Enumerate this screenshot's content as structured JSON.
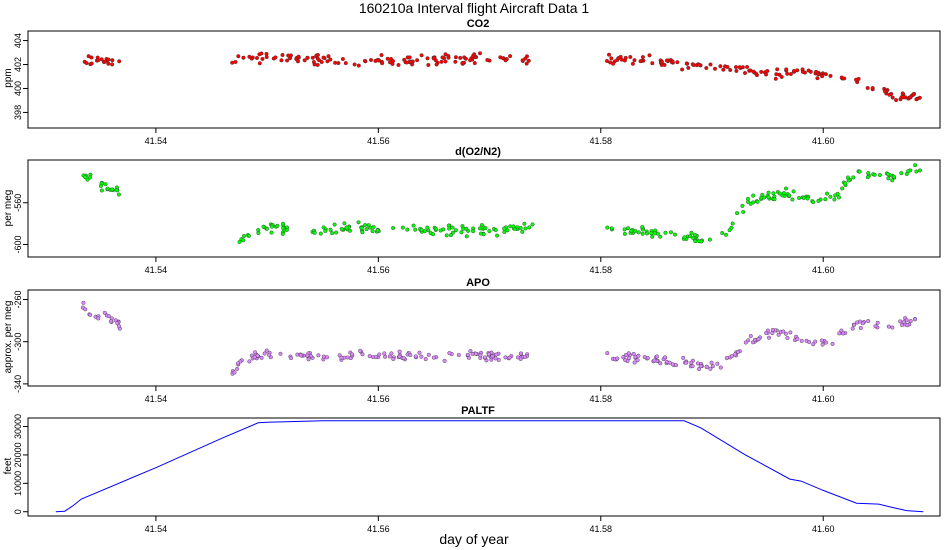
{
  "figure": {
    "title": "160210a   Interval flight Aircraft Data 1",
    "xlabel": "day of year"
  },
  "chart_data": [
    {
      "type": "scatter",
      "title": "CO2",
      "ylabel": "ppm",
      "xlim": [
        41.5285,
        41.6105
      ],
      "ylim": [
        396.7,
        404.8
      ],
      "yticks": [
        398,
        400,
        402,
        404
      ],
      "xticks": [
        41.54,
        41.56,
        41.58,
        41.6
      ],
      "xtick_labels": [
        "41.54",
        "41.56",
        "41.58",
        "41.60"
      ],
      "color": "#ff0000",
      "segments": [
        {
          "x": [
            41.5332,
            41.534,
            41.535,
            41.536,
            41.5368
          ],
          "y": [
            402.1,
            402.3,
            402.4,
            402.2,
            402.3
          ]
        },
        {
          "x": [
            41.5467,
            41.55,
            41.554,
            41.558,
            41.562,
            41.566,
            41.57,
            41.574
          ],
          "y": [
            402.4,
            402.6,
            402.4,
            402.3,
            402.3,
            402.4,
            402.6,
            402.3
          ]
        },
        {
          "x": [
            41.5805,
            41.584,
            41.588,
            41.592,
            41.596,
            41.6,
            41.603,
            41.605,
            41.607,
            41.609
          ],
          "y": [
            402.5,
            402.4,
            402.0,
            401.6,
            401.3,
            401.2,
            400.6,
            399.8,
            399.4,
            399.0
          ]
        }
      ]
    },
    {
      "type": "scatter",
      "title": "d(O2/N2)",
      "ylabel": "per meg",
      "xlim": [
        41.5285,
        41.6105
      ],
      "ylim": [
        -612,
        -519
      ],
      "yticks": [
        -600,
        -560
      ],
      "xticks": [
        41.54,
        41.56,
        41.58,
        41.6
      ],
      "xtick_labels": [
        "41.54",
        "41.56",
        "41.58",
        "41.60"
      ],
      "color": "#00ff00",
      "segments": [
        {
          "x": [
            41.5332,
            41.534,
            41.535,
            41.536,
            41.5368
          ],
          "y": [
            -530,
            -538,
            -542,
            -544,
            -550
          ]
        },
        {
          "x": [
            41.5467,
            41.548,
            41.55,
            41.554,
            41.558,
            41.562,
            41.566,
            41.57,
            41.574
          ],
          "y": [
            -604,
            -592,
            -583,
            -588,
            -583,
            -584,
            -586,
            -587,
            -584
          ]
        },
        {
          "x": [
            41.5805,
            41.584,
            41.588,
            41.591,
            41.593,
            41.596,
            41.599,
            41.601,
            41.603,
            41.606,
            41.609
          ],
          "y": [
            -585,
            -588,
            -594,
            -594,
            -562,
            -550,
            -558,
            -555,
            -531,
            -534,
            -526
          ]
        }
      ]
    },
    {
      "type": "scatter",
      "title": "APO",
      "ylabel": "approx. per meg",
      "xlim": [
        41.5285,
        41.6105
      ],
      "ylim": [
        -342,
        -251
      ],
      "yticks": [
        -340,
        -300,
        -260
      ],
      "xticks": [
        41.54,
        41.56,
        41.58,
        41.6
      ],
      "xtick_labels": [
        "41.54",
        "41.56",
        "41.58",
        "41.60"
      ],
      "color": "#dd88ff",
      "segments": [
        {
          "x": [
            41.5332,
            41.534,
            41.535,
            41.536,
            41.5368
          ],
          "y": [
            -262,
            -272,
            -276,
            -278,
            -286
          ]
        },
        {
          "x": [
            41.5467,
            41.548,
            41.55,
            41.554,
            41.558,
            41.562,
            41.566,
            41.57,
            41.574
          ],
          "y": [
            -332,
            -318,
            -312,
            -316,
            -313,
            -314,
            -314,
            -314,
            -313
          ]
        },
        {
          "x": [
            41.5805,
            41.584,
            41.588,
            41.591,
            41.593,
            41.596,
            41.599,
            41.601,
            41.603,
            41.606,
            41.609
          ],
          "y": [
            -314,
            -316,
            -321,
            -324,
            -300,
            -290,
            -302,
            -297,
            -283,
            -286,
            -278
          ]
        }
      ]
    },
    {
      "type": "line",
      "title": "PALTF",
      "ylabel": "feet",
      "xlim": [
        41.5285,
        41.6105
      ],
      "ylim": [
        -1500,
        33000
      ],
      "yticks": [
        0,
        10000,
        20000,
        30000
      ],
      "xticks": [
        41.54,
        41.56,
        41.58,
        41.6
      ],
      "xtick_labels": [
        "41.54",
        "41.56",
        "41.58",
        "41.60"
      ],
      "color": "#0000ff",
      "x": [
        41.531,
        41.5318,
        41.5325,
        41.5333,
        41.54,
        41.546,
        41.5492,
        41.55,
        41.555,
        41.57,
        41.58,
        41.5875,
        41.589,
        41.593,
        41.597,
        41.598,
        41.6,
        41.603,
        41.605,
        41.606,
        41.6075,
        41.609
      ],
      "y": [
        0,
        200,
        2000,
        4500,
        15500,
        26000,
        31300,
        31500,
        32000,
        32000,
        32000,
        32000,
        29500,
        20000,
        11500,
        10800,
        7500,
        3000,
        2700,
        1700,
        400,
        0
      ]
    }
  ]
}
